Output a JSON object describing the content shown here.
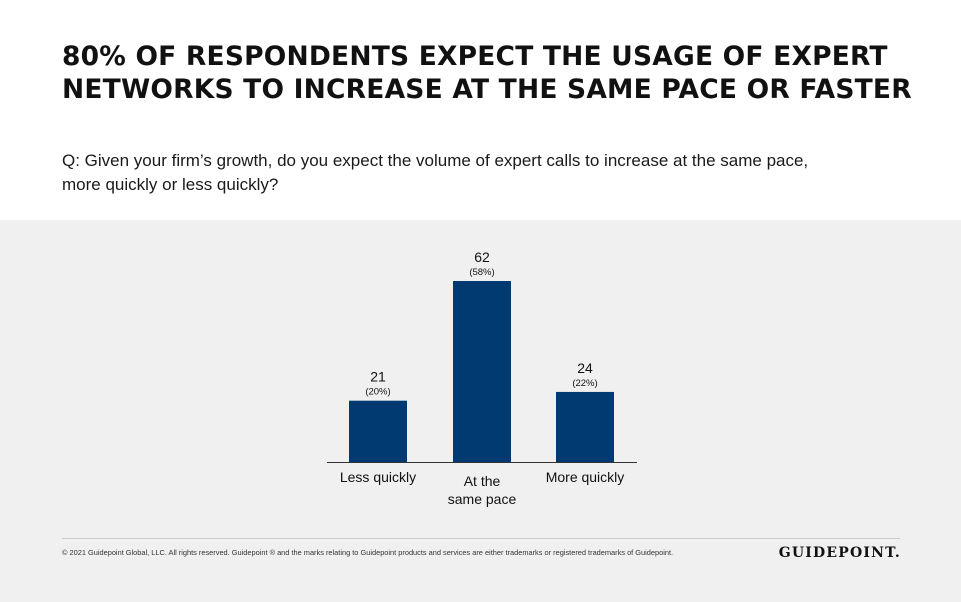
{
  "title_lines": [
    "80% OF RESPONDENTS EXPECT THE USAGE OF EXPERT",
    "NETWORKS TO INCREASE AT THE SAME PACE OR FASTER"
  ],
  "question_lines": [
    "Q: Given your firm’s growth, do you expect the volume of expert calls to increase at the same pace,",
    "more quickly or less quickly?"
  ],
  "footer": {
    "copyright": "© 2021 Guidepoint Global, LLC. All rights reserved. Guidepoint ® and the marks relating to Guidepoint products and services are either trademarks or registered trademarks of Guidepoint.",
    "logo": "GUIDEPOINT."
  },
  "colors": {
    "bar": "#003a70",
    "panel": "#eff0ef",
    "axis": "#333333"
  },
  "chart_data": {
    "type": "bar",
    "title": "80% OF RESPONDENTS EXPECT THE USAGE OF EXPERT NETWORKS TO INCREASE AT THE SAME PACE OR FASTER",
    "categories": [
      [
        "Less quickly"
      ],
      [
        "At the",
        "same pace"
      ],
      [
        "More quickly"
      ]
    ],
    "values": [
      21,
      62,
      24
    ],
    "percent_labels": [
      "(20%)",
      "(58%)",
      "(22%)"
    ],
    "grid": false,
    "legend": "none"
  }
}
